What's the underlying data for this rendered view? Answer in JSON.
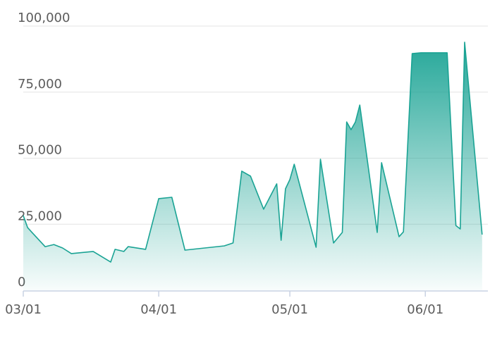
{
  "chart_data": {
    "type": "area",
    "x": [
      "03/01",
      "03/02",
      "03/03",
      "03/06",
      "03/08",
      "03/10",
      "03/12",
      "03/17",
      "03/21",
      "03/22",
      "03/24",
      "03/25",
      "03/29",
      "04/01",
      "04/04",
      "04/07",
      "04/16",
      "04/18",
      "04/20",
      "04/22",
      "04/25",
      "04/28",
      "04/29",
      "04/30",
      "05/01",
      "05/02",
      "05/07",
      "05/08",
      "05/11",
      "05/13",
      "05/14",
      "05/15",
      "05/16",
      "05/17",
      "05/21",
      "05/22",
      "05/26",
      "05/27",
      "05/29",
      "05/31",
      "06/06",
      "06/08",
      "06/09",
      "06/10",
      "06/14"
    ],
    "series": [
      {
        "color": "#1aa394",
        "values": [
          28300,
          23700,
          21900,
          16500,
          17300,
          16000,
          13900,
          14700,
          10700,
          15500,
          14700,
          16500,
          15500,
          34700,
          35200,
          15200,
          16800,
          17900,
          45100,
          43200,
          30700,
          40300,
          18900,
          38400,
          41900,
          47700,
          16300,
          49600,
          17900,
          21900,
          63700,
          60800,
          63700,
          70100,
          21900,
          48300,
          20300,
          22100,
          89600,
          89900,
          89900,
          24500,
          23200,
          93900,
          21100
        ]
      }
    ],
    "xlim": [
      "03/01",
      "06/15"
    ],
    "xticks": [
      "03/01",
      "04/01",
      "05/01",
      "06/01"
    ],
    "ylim": [
      0,
      100000
    ],
    "yticks": [
      0,
      {
        "value": 25000,
        "label": "25,000"
      },
      {
        "value": 50000,
        "label": "50,000"
      },
      {
        "value": 75000,
        "label": "75,000"
      },
      {
        "value": 100000,
        "label": "100,000"
      }
    ],
    "grid": true
  }
}
